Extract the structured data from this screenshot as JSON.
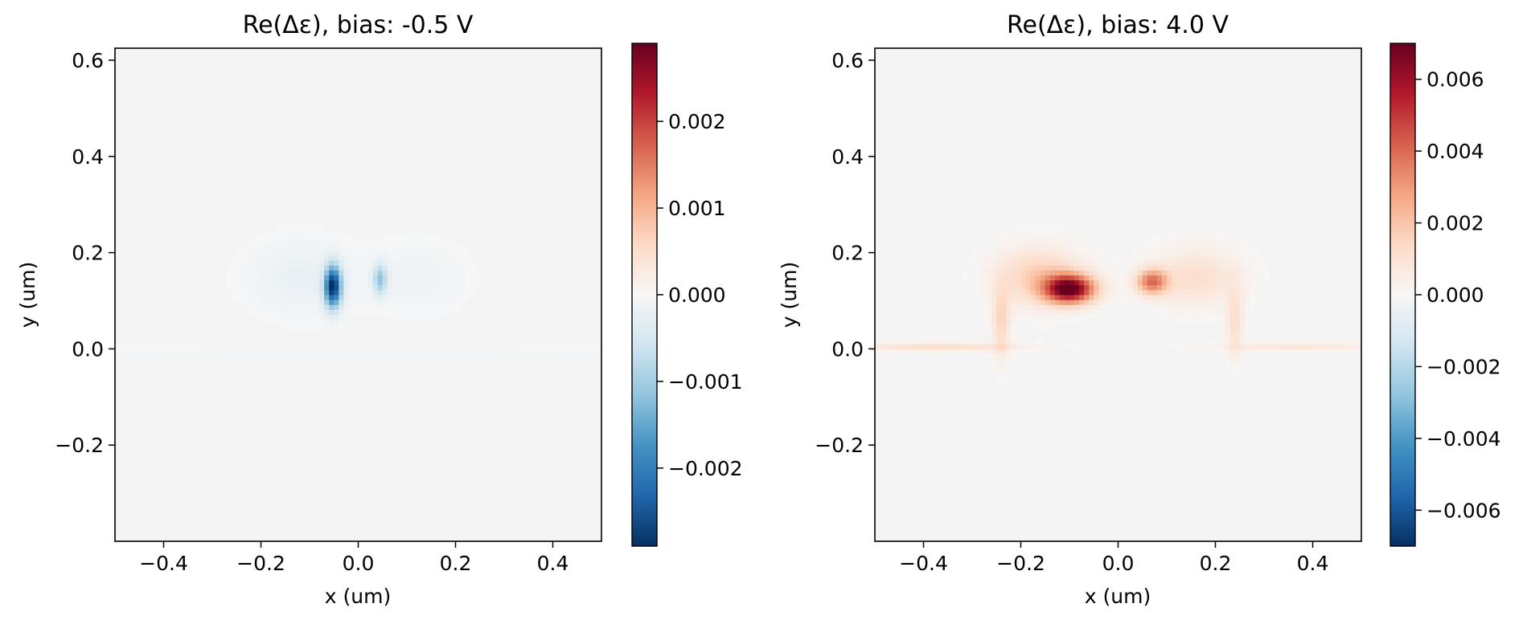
{
  "chart_data": [
    {
      "type": "heatmap",
      "title": "Re(Δε), bias: -0.5 V",
      "xlabel": "x (um)",
      "ylabel": "y (um)",
      "xlim": [
        -0.5,
        0.5
      ],
      "ylim": [
        -0.4,
        0.625
      ],
      "xticks": [
        -0.4,
        -0.2,
        0.0,
        0.2,
        0.4
      ],
      "xtick_labels": [
        "−0.4",
        "−0.2",
        "0.0",
        "0.2",
        "0.4"
      ],
      "yticks": [
        -0.2,
        0.0,
        0.2,
        0.4,
        0.6
      ],
      "ytick_labels": [
        "−0.2",
        "0.0",
        "0.2",
        "0.4",
        "0.6"
      ],
      "colormap": "RdBu_r",
      "background": "#f4f4f4",
      "clim": [
        -0.0029,
        0.0029
      ],
      "cbar_ticks": [
        -0.002,
        -0.001,
        0.0,
        0.001,
        0.002
      ],
      "cbar_tick_labels": [
        "−0.002",
        "−0.001",
        "0.000",
        "0.001",
        "0.002"
      ],
      "features": [
        {
          "x": -0.052,
          "y": 0.13,
          "sx": 0.012,
          "sy": 0.03,
          "value": -0.0029
        },
        {
          "x": 0.045,
          "y": 0.145,
          "sx": 0.01,
          "sy": 0.022,
          "value": -0.0011
        },
        {
          "x": -0.12,
          "y": 0.15,
          "sx": 0.07,
          "sy": 0.05,
          "value": -0.00022
        },
        {
          "x": 0.12,
          "y": 0.15,
          "sx": 0.07,
          "sy": 0.05,
          "value": -0.00012
        },
        {
          "x": 0.0,
          "y": 0.0,
          "sx": 0.4,
          "sy": 0.008,
          "value": -8e-05
        }
      ]
    },
    {
      "type": "heatmap",
      "title": "Re(Δε), bias: 4.0 V",
      "xlabel": "x (um)",
      "ylabel": "y (um)",
      "xlim": [
        -0.5,
        0.5
      ],
      "ylim": [
        -0.4,
        0.625
      ],
      "xticks": [
        -0.4,
        -0.2,
        0.0,
        0.2,
        0.4
      ],
      "xtick_labels": [
        "−0.4",
        "−0.2",
        "0.0",
        "0.2",
        "0.4"
      ],
      "yticks": [
        -0.2,
        0.0,
        0.2,
        0.4,
        0.6
      ],
      "ytick_labels": [
        "−0.2",
        "0.0",
        "0.2",
        "0.4",
        "0.6"
      ],
      "colormap": "RdBu_r",
      "background": "#f4f4f4",
      "clim": [
        -0.007,
        0.007
      ],
      "cbar_ticks": [
        -0.006,
        -0.004,
        -0.002,
        0.0,
        0.002,
        0.004,
        0.006
      ],
      "cbar_tick_labels": [
        "−0.006",
        "−0.004",
        "−0.002",
        "0.000",
        "0.002",
        "0.004",
        "0.006"
      ],
      "features": [
        {
          "x": -0.1,
          "y": 0.125,
          "sx": 0.035,
          "sy": 0.02,
          "value": 0.007
        },
        {
          "x": 0.07,
          "y": 0.14,
          "sx": 0.022,
          "sy": 0.018,
          "value": 0.0038
        },
        {
          "x": -0.16,
          "y": 0.15,
          "sx": 0.06,
          "sy": 0.04,
          "value": 0.0018
        },
        {
          "x": 0.16,
          "y": 0.15,
          "sx": 0.06,
          "sy": 0.04,
          "value": 0.0012
        },
        {
          "x": -0.24,
          "y": 0.06,
          "sx": 0.012,
          "sy": 0.05,
          "value": 0.0016
        },
        {
          "x": 0.24,
          "y": 0.06,
          "sx": 0.012,
          "sy": 0.05,
          "value": 0.0012
        },
        {
          "x": -0.37,
          "y": 0.005,
          "sx": 0.12,
          "sy": 0.006,
          "value": 0.0012
        },
        {
          "x": 0.37,
          "y": 0.005,
          "sx": 0.12,
          "sy": 0.006,
          "value": 0.0008
        }
      ]
    }
  ]
}
